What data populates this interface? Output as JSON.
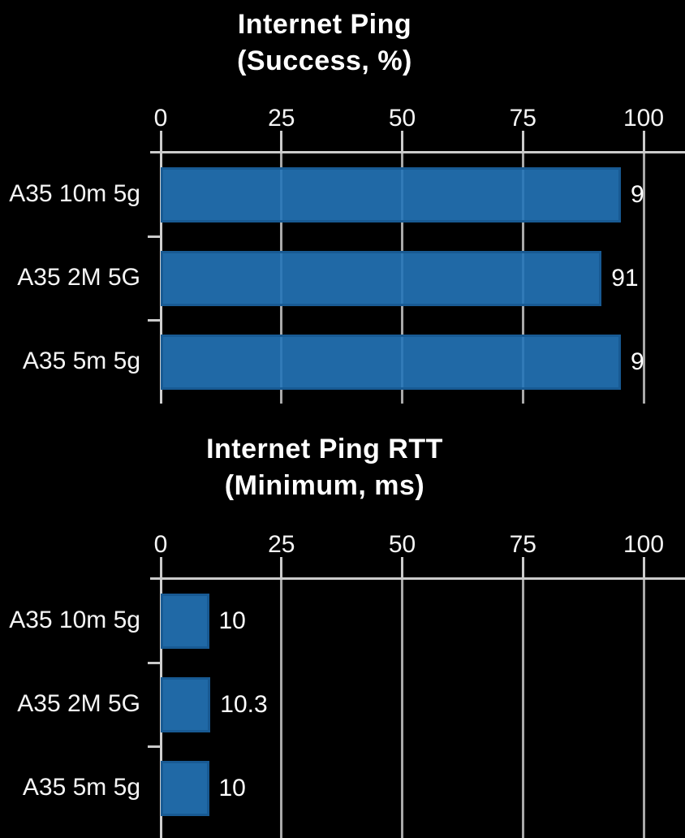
{
  "page": {
    "background_color": "#000000",
    "text_color": "#ffffff",
    "bar_color": "#2069a6",
    "bar_border_color": "#185a91",
    "gridline_color": "#a9a9a9",
    "axis_color": "#cbcbcb"
  },
  "chart_data": [
    {
      "type": "bar",
      "orientation": "horizontal",
      "title": "Internet Ping (Success, %)",
      "title_lines": [
        "Internet Ping",
        "(Success, %)"
      ],
      "categories": [
        "A35 10m 5g",
        "A35 2M 5G",
        "A35 5m 5g"
      ],
      "values": [
        95.3,
        91.3,
        95.3
      ],
      "value_labels": [
        "9",
        "91",
        "9"
      ],
      "xlim": [
        0,
        100
      ],
      "x_ticks": [
        "0",
        "25",
        "50",
        "75",
        "100"
      ],
      "x_tick_values": [
        0,
        25,
        50,
        75,
        100
      ],
      "grid": true,
      "legend": "none",
      "note": "value labels of bars 1 and 3 are clipped at the right plot edge"
    },
    {
      "type": "bar",
      "orientation": "horizontal",
      "title": "Internet Ping RTT (Minimum, ms)",
      "title_lines": [
        "Internet Ping RTT",
        "(Minimum, ms)"
      ],
      "categories": [
        "A35 10m 5g",
        "A35 2M 5G",
        "A35 5m 5g"
      ],
      "values": [
        10,
        10.3,
        10
      ],
      "value_labels": [
        "10",
        "10.3",
        "10"
      ],
      "xlim": [
        0,
        100
      ],
      "x_ticks": [
        "0",
        "25",
        "50",
        "75",
        "100"
      ],
      "x_tick_values": [
        0,
        25,
        50,
        75,
        100
      ],
      "grid": true,
      "legend": "none",
      "note": "bottom of plot area is cut off by the screenshot edge"
    }
  ]
}
